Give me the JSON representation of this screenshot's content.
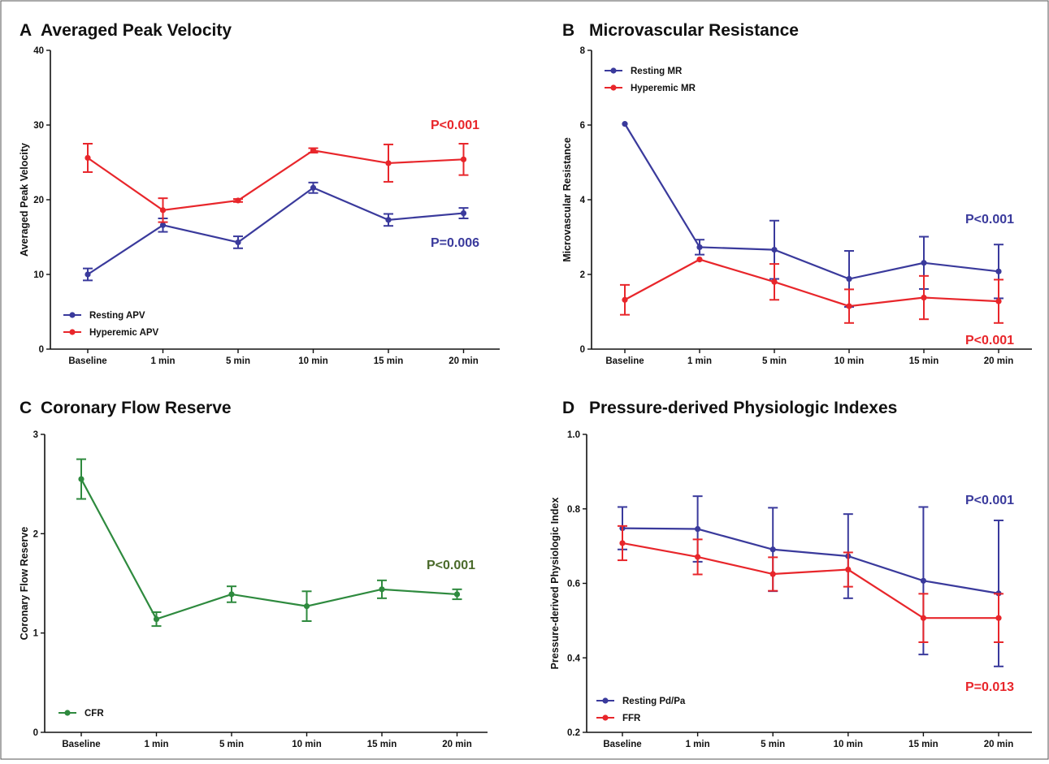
{
  "chart_data": [
    {
      "type": "line",
      "letter": "A",
      "title": "Averaged Peak Velocity",
      "ylabel": "Averaged Peak Velocity",
      "categories": [
        "Baseline",
        "1 min",
        "5 min",
        "10 min",
        "15 min",
        "20 min"
      ],
      "ylim": [
        0,
        40
      ],
      "yticks": [
        "0",
        "10",
        "20",
        "30",
        "40"
      ],
      "series": [
        {
          "name": "Resting APV",
          "color": "#3a3a9c",
          "values": [
            10.0,
            16.6,
            14.3,
            21.6,
            17.3,
            18.2
          ],
          "err": [
            0.8,
            0.9,
            0.8,
            0.7,
            0.8,
            0.7
          ]
        },
        {
          "name": "Hyperemic APV",
          "color": "#e8262b",
          "values": [
            25.6,
            18.6,
            19.9,
            26.6,
            24.9,
            25.4
          ],
          "err": [
            1.9,
            1.6,
            0.2,
            0.3,
            2.5,
            2.1
          ]
        }
      ],
      "annotations": [
        {
          "text": "P<0.001",
          "color": "#e8262b"
        },
        {
          "text": "P=0.006",
          "color": "#3a3a9c"
        }
      ]
    },
    {
      "type": "line",
      "letter": "B",
      "title": "Microvascular Resistance",
      "ylabel": "Microvascular Resistance",
      "categories": [
        "Baseline",
        "1 min",
        "5 min",
        "10 min",
        "15 min",
        "20 min"
      ],
      "ylim": [
        0,
        8
      ],
      "yticks": [
        "0",
        "2",
        "4",
        "6",
        "8"
      ],
      "series": [
        {
          "name": "Resting MR",
          "color": "#3a3a9c",
          "values": [
            6.03,
            2.73,
            2.66,
            1.88,
            2.31,
            2.08
          ],
          "err": [
            0.0,
            0.2,
            0.78,
            0.75,
            0.7,
            0.72
          ]
        },
        {
          "name": "Hyperemic MR",
          "color": "#e8262b",
          "values": [
            1.32,
            2.4,
            1.8,
            1.15,
            1.38,
            1.28
          ],
          "err": [
            0.4,
            0.0,
            0.48,
            0.45,
            0.58,
            0.58
          ]
        }
      ],
      "annotations": [
        {
          "text": "P<0.001",
          "color": "#3a3a9c"
        },
        {
          "text": "P<0.001",
          "color": "#e8262b"
        }
      ]
    },
    {
      "type": "line",
      "letter": "C",
      "title": "Coronary Flow Reserve",
      "ylabel": "Coronary Flow Reserve",
      "categories": [
        "Baseline",
        "1 min",
        "5 min",
        "10 min",
        "15 min",
        "20 min"
      ],
      "ylim": [
        0,
        3
      ],
      "yticks": [
        "0",
        "1",
        "2",
        "3"
      ],
      "series": [
        {
          "name": "CFR",
          "color": "#2e8a3e",
          "values": [
            2.55,
            1.14,
            1.39,
            1.27,
            1.44,
            1.39
          ],
          "err": [
            0.2,
            0.07,
            0.08,
            0.15,
            0.09,
            0.05
          ]
        }
      ],
      "annotations": [
        {
          "text": "P<0.001",
          "color": "#4a6a2a"
        }
      ]
    },
    {
      "type": "line",
      "letter": "D",
      "title": "Pressure-derived Physiologic Indexes",
      "ylabel": "Pressure-derived Physiologic Index",
      "categories": [
        "Baseline",
        "1 min",
        "5 min",
        "10 min",
        "15 min",
        "20 min"
      ],
      "ylim": [
        0.2,
        1.0
      ],
      "yticks": [
        "0.2",
        "0.4",
        "0.6",
        "0.8",
        "1.0"
      ],
      "series": [
        {
          "name": "Resting Pd/Pa",
          "color": "#3a3a9c",
          "values": [
            0.748,
            0.746,
            0.691,
            0.673,
            0.607,
            0.573
          ],
          "err": [
            0.057,
            0.088,
            0.112,
            0.113,
            0.198,
            0.196
          ]
        },
        {
          "name": "FFR",
          "color": "#e8262b",
          "values": [
            0.708,
            0.671,
            0.625,
            0.637,
            0.507,
            0.507
          ],
          "err": [
            0.046,
            0.047,
            0.045,
            0.046,
            0.065,
            0.065
          ]
        }
      ],
      "annotations": [
        {
          "text": "P<0.001",
          "color": "#3a3a9c"
        },
        {
          "text": "P=0.013",
          "color": "#e8262b"
        }
      ]
    }
  ]
}
